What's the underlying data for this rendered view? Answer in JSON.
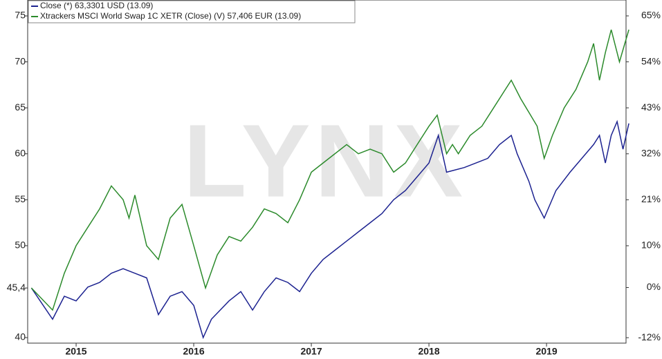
{
  "chart_data": {
    "type": "line",
    "watermark": "LYNX",
    "x": [],
    "xlim": [
      2014.588,
      2019.676
    ],
    "xticks": [
      2015,
      2016,
      2017,
      2018,
      2019
    ],
    "ylim": [
      39.4,
      76.73
    ],
    "yticks": [
      40,
      {
        "value": 45.4,
        "label": "45,4"
      },
      50,
      55,
      60,
      65,
      70,
      75
    ],
    "y2lim": [
      -13.3,
      68.8
    ],
    "y2ticks": [
      {
        "value": -12,
        "label": "-12%"
      },
      {
        "value": 0,
        "label": "0%"
      },
      {
        "value": 10,
        "label": "10%"
      },
      {
        "value": 21,
        "label": "21%"
      },
      {
        "value": 32,
        "label": "32%"
      },
      {
        "value": 43,
        "label": "43%"
      },
      {
        "value": 54,
        "label": "54%"
      },
      {
        "value": 65,
        "label": "65%"
      }
    ],
    "series": [
      {
        "name": "Close (*) 63,3301 USD (13.09)",
        "color": "#1c2290",
        "x": [
          2014.62,
          2014.8,
          2014.9,
          2015.0,
          2015.1,
          2015.2,
          2015.3,
          2015.4,
          2015.5,
          2015.6,
          2015.7,
          2015.8,
          2015.9,
          2016.0,
          2016.08,
          2016.15,
          2016.3,
          2016.4,
          2016.5,
          2016.6,
          2016.7,
          2016.8,
          2016.9,
          2017.0,
          2017.1,
          2017.2,
          2017.3,
          2017.4,
          2017.5,
          2017.6,
          2017.7,
          2017.8,
          2017.9,
          2018.0,
          2018.08,
          2018.15,
          2018.3,
          2018.4,
          2018.5,
          2018.6,
          2018.7,
          2018.75,
          2018.85,
          2018.9,
          2018.98,
          2019.08,
          2019.2,
          2019.3,
          2019.4,
          2019.45,
          2019.5,
          2019.55,
          2019.6,
          2019.65,
          2019.7
        ],
        "values": [
          45.4,
          42,
          44.5,
          44,
          45.5,
          46,
          47,
          47.5,
          47,
          46.5,
          42.5,
          44.5,
          45,
          43.5,
          40,
          42,
          44,
          45,
          43,
          45,
          46.5,
          46,
          45,
          47,
          48.5,
          49.5,
          50.5,
          51.5,
          52.5,
          53.5,
          55,
          56,
          57.5,
          59,
          62,
          58,
          58.5,
          59,
          59.5,
          61,
          62,
          60,
          57,
          55,
          53,
          56,
          58,
          59.5,
          61,
          62,
          59,
          62,
          63.5,
          60.5,
          63.3
        ]
      },
      {
        "name": "Xtrackers MSCI World Swap 1C XETR (Close) (V) 57,406 EUR (13.09)",
        "color": "#2b8a2b",
        "x": [
          2014.62,
          2014.8,
          2014.9,
          2015.0,
          2015.1,
          2015.2,
          2015.3,
          2015.4,
          2015.45,
          2015.5,
          2015.6,
          2015.7,
          2015.8,
          2015.9,
          2016.0,
          2016.1,
          2016.2,
          2016.3,
          2016.4,
          2016.5,
          2016.6,
          2016.7,
          2016.8,
          2016.9,
          2017.0,
          2017.15,
          2017.3,
          2017.4,
          2017.5,
          2017.6,
          2017.7,
          2017.8,
          2017.9,
          2018.0,
          2018.07,
          2018.15,
          2018.2,
          2018.25,
          2018.35,
          2018.45,
          2018.55,
          2018.65,
          2018.7,
          2018.78,
          2018.85,
          2018.92,
          2018.98,
          2019.05,
          2019.15,
          2019.25,
          2019.35,
          2019.4,
          2019.45,
          2019.5,
          2019.55,
          2019.62,
          2019.7
        ],
        "values": [
          45.4,
          43,
          47,
          50,
          52,
          54,
          56.5,
          55,
          53,
          55.5,
          50,
          48.5,
          53,
          54.5,
          50,
          45.4,
          49,
          51,
          50.5,
          52,
          54,
          53.5,
          52.5,
          55,
          58,
          59.5,
          61,
          60,
          60.5,
          60,
          58,
          59,
          61,
          63,
          64.2,
          60,
          61,
          60,
          62,
          63,
          65,
          67,
          68,
          66,
          64.5,
          63,
          59.5,
          62,
          65,
          67,
          70,
          72,
          68,
          71,
          73.5,
          70,
          73.5
        ]
      }
    ]
  }
}
